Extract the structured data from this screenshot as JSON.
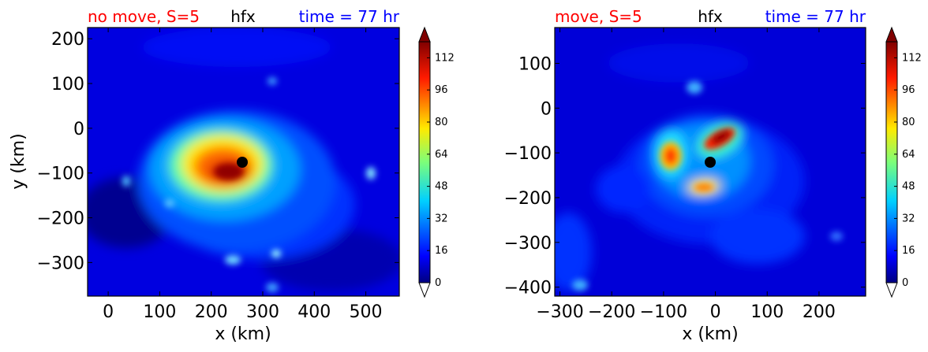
{
  "chart_data": [
    {
      "type": "heatmap",
      "title_left": "no move, S=5",
      "title_center": "hfx",
      "title_right": "time = 77 hr",
      "title_colors": {
        "left": "#ff0000",
        "center": "#000000",
        "right": "#0000ff"
      },
      "xlabel": "x (km)",
      "ylabel": "y (km)",
      "xlim": [
        -40,
        565
      ],
      "ylim": [
        -375,
        225
      ],
      "xticks": [
        "0",
        "100",
        "200",
        "300",
        "400",
        "500"
      ],
      "xtick_values": [
        0,
        100,
        200,
        300,
        400,
        500
      ],
      "yticks": [
        "200",
        "100",
        "0",
        "−100",
        "−200",
        "−300"
      ],
      "ytick_values": [
        200,
        100,
        0,
        -100,
        -200,
        -300
      ],
      "center_marker": {
        "x": 265,
        "y": -75
      },
      "colorbar": {
        "min": 0,
        "max": 120,
        "ticks": [
          "0",
          "16",
          "32",
          "48",
          "64",
          "80",
          "96",
          "112"
        ],
        "tick_values": [
          0,
          16,
          32,
          48,
          64,
          80,
          96,
          112
        ],
        "extend": "both"
      }
    },
    {
      "type": "heatmap",
      "title_left": "move, S=5",
      "title_center": "hfx",
      "title_right": "time = 77 hr",
      "title_colors": {
        "left": "#ff0000",
        "center": "#000000",
        "right": "#0000ff"
      },
      "xlabel": "x (km)",
      "ylabel": "",
      "xlim": [
        -310,
        290
      ],
      "ylim": [
        -420,
        180
      ],
      "xticks": [
        "−300",
        "−200",
        "−100",
        "0",
        "100",
        "200"
      ],
      "xtick_values": [
        -300,
        -200,
        -100,
        0,
        100,
        200
      ],
      "yticks": [
        "100",
        "0",
        "−100",
        "−200",
        "−300",
        "−400"
      ],
      "ytick_values": [
        100,
        0,
        -100,
        -200,
        -300,
        -400
      ],
      "center_marker": {
        "x": -15,
        "y": -120
      },
      "colorbar": {
        "min": 0,
        "max": 120,
        "ticks": [
          "0",
          "16",
          "32",
          "48",
          "64",
          "80",
          "96",
          "112"
        ],
        "tick_values": [
          0,
          16,
          32,
          48,
          64,
          80,
          96,
          112
        ],
        "extend": "both"
      }
    }
  ]
}
